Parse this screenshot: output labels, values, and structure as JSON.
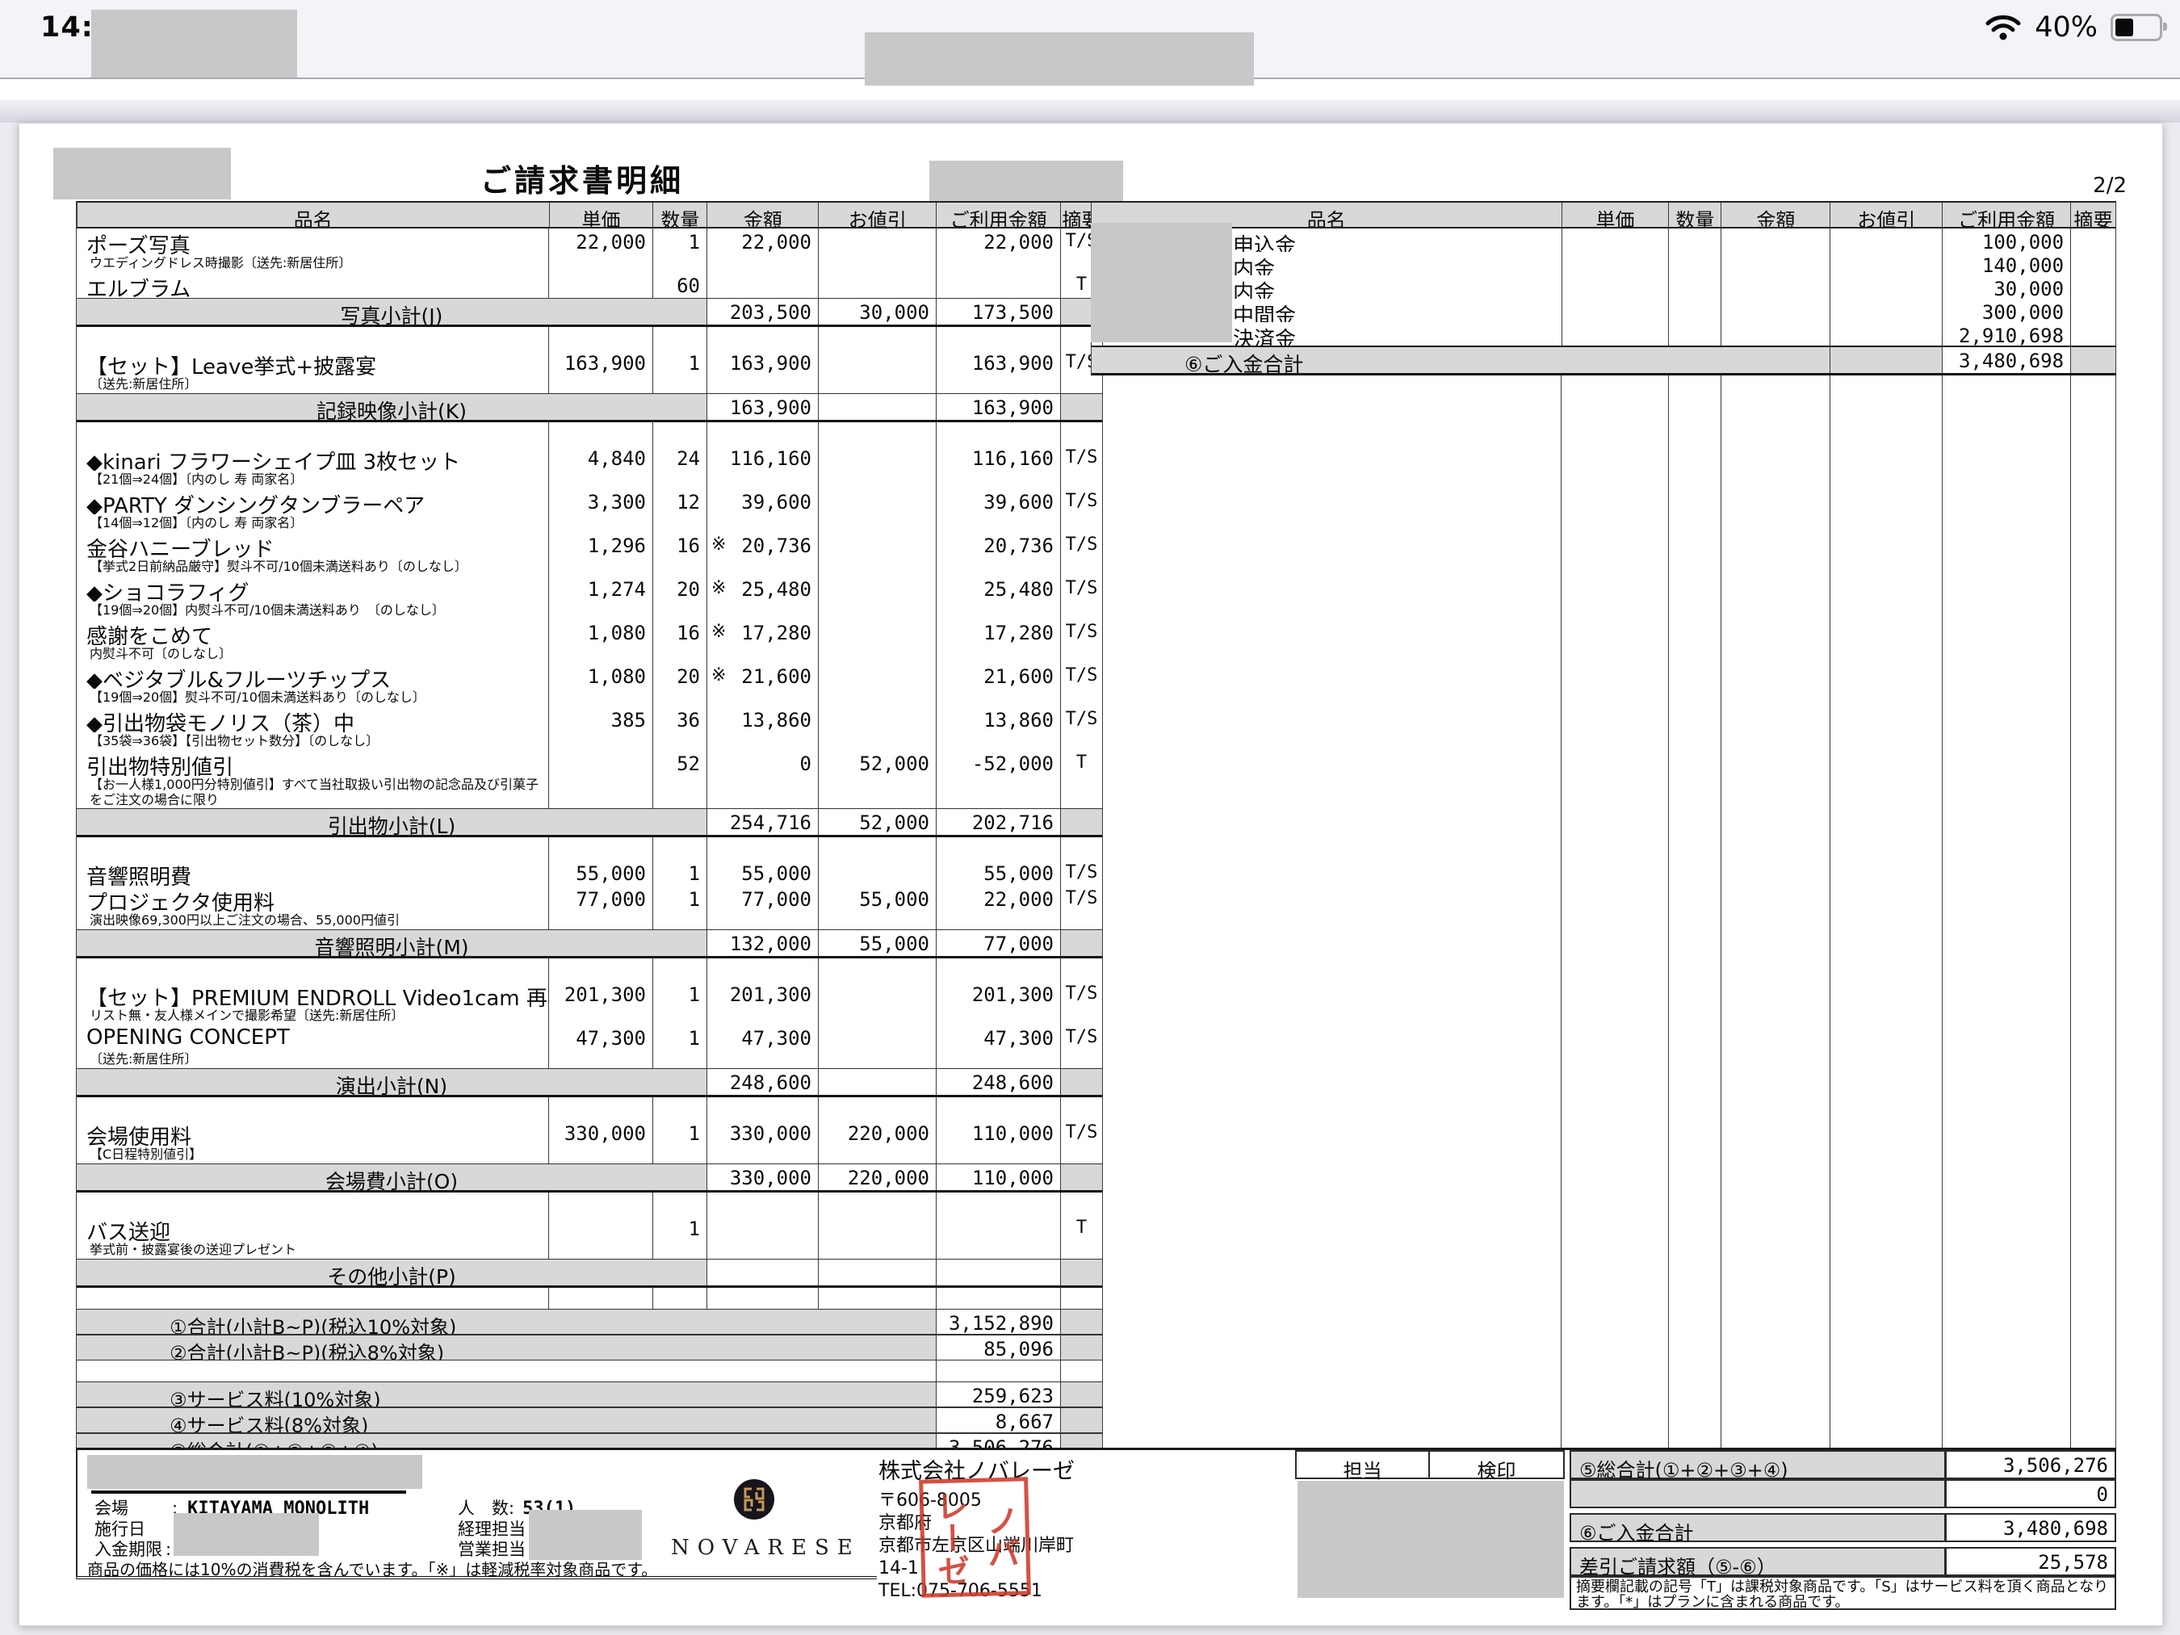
{
  "status_bar": {
    "time": "14:32",
    "battery": "40%"
  },
  "page_indicator": "2/2",
  "title": "ご請求書明細",
  "columns": [
    "品名",
    "単価",
    "数量",
    "金額",
    "お値引",
    "ご利用金額",
    "摘要"
  ],
  "left_table": {
    "sections": [
      {
        "items": [
          {
            "name": "ポーズ写真",
            "unit": "22,000",
            "qty": "1",
            "amount": "22,000",
            "discount": "",
            "total": "22,000",
            "remark": "T/S",
            "note": "ウエディングドレス時撮影〔送先:新居住所〕"
          },
          {
            "name": "エルブラム",
            "unit": "",
            "qty": "60",
            "amount": "",
            "discount": "",
            "total": "",
            "remark": "T"
          }
        ],
        "subtotal": {
          "label": "写真小計(J)",
          "amount": "203,500",
          "discount": "30,000",
          "total": "173,500"
        }
      },
      {
        "items": [
          {
            "name": "【セット】Leave挙式+披露宴",
            "unit": "163,900",
            "qty": "1",
            "amount": "163,900",
            "discount": "",
            "total": "163,900",
            "remark": "T/S",
            "note": "〔送先:新居住所〕"
          }
        ],
        "subtotal": {
          "label": "記録映像小計(K)",
          "amount": "163,900",
          "discount": "",
          "total": "163,900"
        }
      },
      {
        "items": [
          {
            "name": "◆kinari フラワーシェイプ皿 3枚セット",
            "unit": "4,840",
            "qty": "24",
            "amount": "116,160",
            "discount": "",
            "total": "116,160",
            "remark": "T/S",
            "note": "【21個⇒24個】〔内のし 寿 両家名〕"
          },
          {
            "name": "◆PARTY ダンシングタンブラーペア",
            "unit": "3,300",
            "qty": "12",
            "amount": "39,600",
            "discount": "",
            "total": "39,600",
            "remark": "T/S",
            "note": "【14個⇒12個】〔内のし 寿 両家名〕"
          },
          {
            "name": "金谷ハニーブレッド",
            "unit": "1,296",
            "qty": "16",
            "star": "※",
            "amount": "20,736",
            "discount": "",
            "total": "20,736",
            "remark": "T/S",
            "note": "【挙式2日前納品厳守】熨斗不可/10個未満送料あり〔のしなし〕"
          },
          {
            "name": "◆ショコラフィグ",
            "unit": "1,274",
            "qty": "20",
            "star": "※",
            "amount": "25,480",
            "discount": "",
            "total": "25,480",
            "remark": "T/S",
            "note": "【19個⇒20個】内熨斗不可/10個未満送料あり　〔のしなし〕"
          },
          {
            "name": "感謝をこめて",
            "unit": "1,080",
            "qty": "16",
            "star": "※",
            "amount": "17,280",
            "discount": "",
            "total": "17,280",
            "remark": "T/S",
            "note": "内熨斗不可〔のしなし〕"
          },
          {
            "name": "◆ベジタブル&フルーツチップス",
            "unit": "1,080",
            "qty": "20",
            "star": "※",
            "amount": "21,600",
            "discount": "",
            "total": "21,600",
            "remark": "T/S",
            "note": "【19個⇒20個】熨斗不可/10個未満送料あり〔のしなし〕"
          },
          {
            "name": "◆引出物袋モノリス（茶）中",
            "unit": "385",
            "qty": "36",
            "amount": "13,860",
            "discount": "",
            "total": "13,860",
            "remark": "T/S",
            "note": "【35袋⇒36袋】【引出物セット数分】〔のしなし〕"
          },
          {
            "name": "引出物特別値引",
            "unit": "",
            "qty": "52",
            "amount": "0",
            "discount": "52,000",
            "total": "-52,000",
            "remark": "T",
            "note": "【お一人様1,000円分特別値引】すべて当社取扱い引出物の記念品及び引菓子をご注文の場合に限り",
            "note_lines": 2
          }
        ],
        "subtotal": {
          "label": "引出物小計(L)",
          "amount": "254,716",
          "discount": "52,000",
          "total": "202,716"
        }
      },
      {
        "items": [
          {
            "name": "音響照明費",
            "unit": "55,000",
            "qty": "1",
            "amount": "55,000",
            "discount": "",
            "total": "55,000",
            "remark": "T/S"
          },
          {
            "name": "プロジェクタ使用料",
            "unit": "77,000",
            "qty": "1",
            "amount": "77,000",
            "discount": "55,000",
            "total": "22,000",
            "remark": "T/S",
            "note": "演出映像69,300円以上ご注文の場合、55,000円値引"
          }
        ],
        "subtotal": {
          "label": "音響照明小計(M)",
          "amount": "132,000",
          "discount": "55,000",
          "total": "77,000"
        }
      },
      {
        "items": [
          {
            "name": "【セット】PREMIUM ENDROLL Video1cam 再",
            "unit": "201,300",
            "qty": "1",
            "amount": "201,300",
            "discount": "",
            "total": "201,300",
            "remark": "T/S",
            "note": "リスト無・友人様メインで撮影希望〔送先:新居住所〕"
          },
          {
            "name": "OPENING CONCEPT",
            "unit": "47,300",
            "qty": "1",
            "amount": "47,300",
            "discount": "",
            "total": "47,300",
            "remark": "T/S",
            "note": "〔送先:新居住所〕"
          }
        ],
        "subtotal": {
          "label": "演出小計(N)",
          "amount": "248,600",
          "discount": "",
          "total": "248,600"
        }
      },
      {
        "items": [
          {
            "name": "会場使用料",
            "unit": "330,000",
            "qty": "1",
            "amount": "330,000",
            "discount": "220,000",
            "total": "110,000",
            "remark": "T/S",
            "note": "【C日程特別値引】"
          }
        ],
        "subtotal": {
          "label": "会場費小計(O)",
          "amount": "330,000",
          "discount": "220,000",
          "total": "110,000"
        }
      },
      {
        "items": [
          {
            "name": "バス送迎",
            "unit": "",
            "qty": "1",
            "amount": "",
            "discount": "",
            "total": "",
            "remark": "T",
            "note": "挙式前・披露宴後の送迎プレゼント"
          }
        ],
        "subtotal": {
          "label": "その他小計(P)",
          "amount": "",
          "discount": "",
          "total": ""
        }
      }
    ],
    "summary": [
      {
        "label": "①合計(小計B~P)(税込10%対象)",
        "value": "3,152,890"
      },
      {
        "label": "②合計(小計B~P)(税込8%対象)",
        "value": "85,096"
      },
      {
        "label": "③サービス料(10%対象)",
        "value": "259,623"
      },
      {
        "label": "④サービス料(8%対象)",
        "value": "8,667"
      },
      {
        "label": "⑤総合計(①+②+③+④)",
        "value": "3,506,276"
      }
    ]
  },
  "right_table": {
    "payments": [
      {
        "name": "申込金",
        "total": "100,000"
      },
      {
        "name": "内金",
        "total": "140,000"
      },
      {
        "name": "内金",
        "total": "30,000"
      },
      {
        "name": "中間金",
        "total": "300,000"
      },
      {
        "name": "決済金",
        "total": "2,910,698"
      }
    ],
    "total_row": {
      "label": "⑥ご入金合計",
      "value": "3,480,698"
    }
  },
  "footer": {
    "colon": ":",
    "venue_label": "会場",
    "venue_value": "KITAYAMA MONOLITH",
    "date_label": "施行日",
    "deadline_label": "入金期限",
    "guests_label": "人　数:",
    "guests_value": "53(1)",
    "accounting_label": "経理担当",
    "sales_label": "営業担当",
    "tax_note": "商品の価格には10%の消費税を含んでいます。「※」は軽減税率対象商品です。",
    "brand_name": "NOVARESE",
    "company_name": "株式会社ノバレーゼ",
    "company_lines": [
      "〒606-8005",
      "京都府",
      "京都市左京区山端川岸町",
      "14-1",
      "TEL:075-706-5551"
    ],
    "stamp_chars": [
      "ノバ",
      "レーゼ"
    ],
    "staff_label": "担当",
    "seal_label": "検印",
    "totals": [
      {
        "label": "⑤総合計(①+②+③+④)",
        "value": "3,506,276"
      },
      {
        "label": "",
        "value": "0"
      },
      {
        "label": "⑥ご入金合計",
        "value": "3,480,698"
      },
      {
        "label": "差引ご請求額（⑤-⑥）",
        "value": "25,578"
      }
    ],
    "remark_note": "摘要欄記載の記号「T」は課税対象商品です。「S」はサービス料を頂く商品となります。「*」はプランに含まれる商品です。"
  }
}
